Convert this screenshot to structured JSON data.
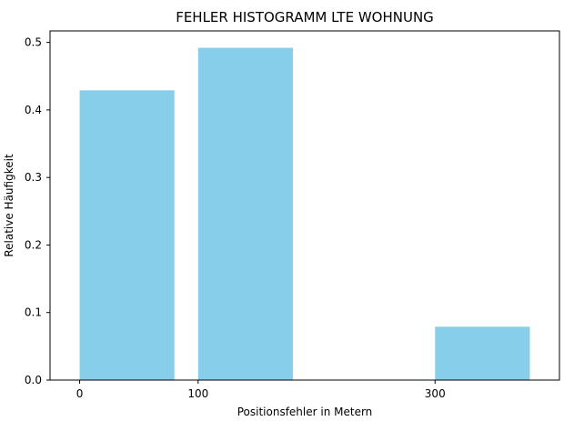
{
  "chart_data": {
    "type": "bar",
    "title": "FEHLER HISTOGRAMM LTE WOHNUNG",
    "xlabel": "Positionsfehler in Metern",
    "ylabel": "Relative Häufigkeit",
    "bars": [
      {
        "x_start": 0,
        "x_end": 80,
        "value": 0.429
      },
      {
        "x_start": 100,
        "x_end": 180,
        "value": 0.492
      },
      {
        "x_start": 300,
        "x_end": 380,
        "value": 0.079
      }
    ],
    "xlim": [
      -25,
      405
    ],
    "ylim": [
      0,
      0.517
    ],
    "xticks": [
      {
        "value": 0,
        "label": "0"
      },
      {
        "value": 100,
        "label": "100"
      },
      {
        "value": 300,
        "label": "300"
      }
    ],
    "yticks": [
      {
        "value": 0.0,
        "label": "0.0"
      },
      {
        "value": 0.1,
        "label": "0.1"
      },
      {
        "value": 0.2,
        "label": "0.2"
      },
      {
        "value": 0.3,
        "label": "0.3"
      },
      {
        "value": 0.4,
        "label": "0.4"
      },
      {
        "value": 0.5,
        "label": "0.5"
      }
    ],
    "bar_color": "#87ceeb",
    "grid": false,
    "legend": false
  }
}
